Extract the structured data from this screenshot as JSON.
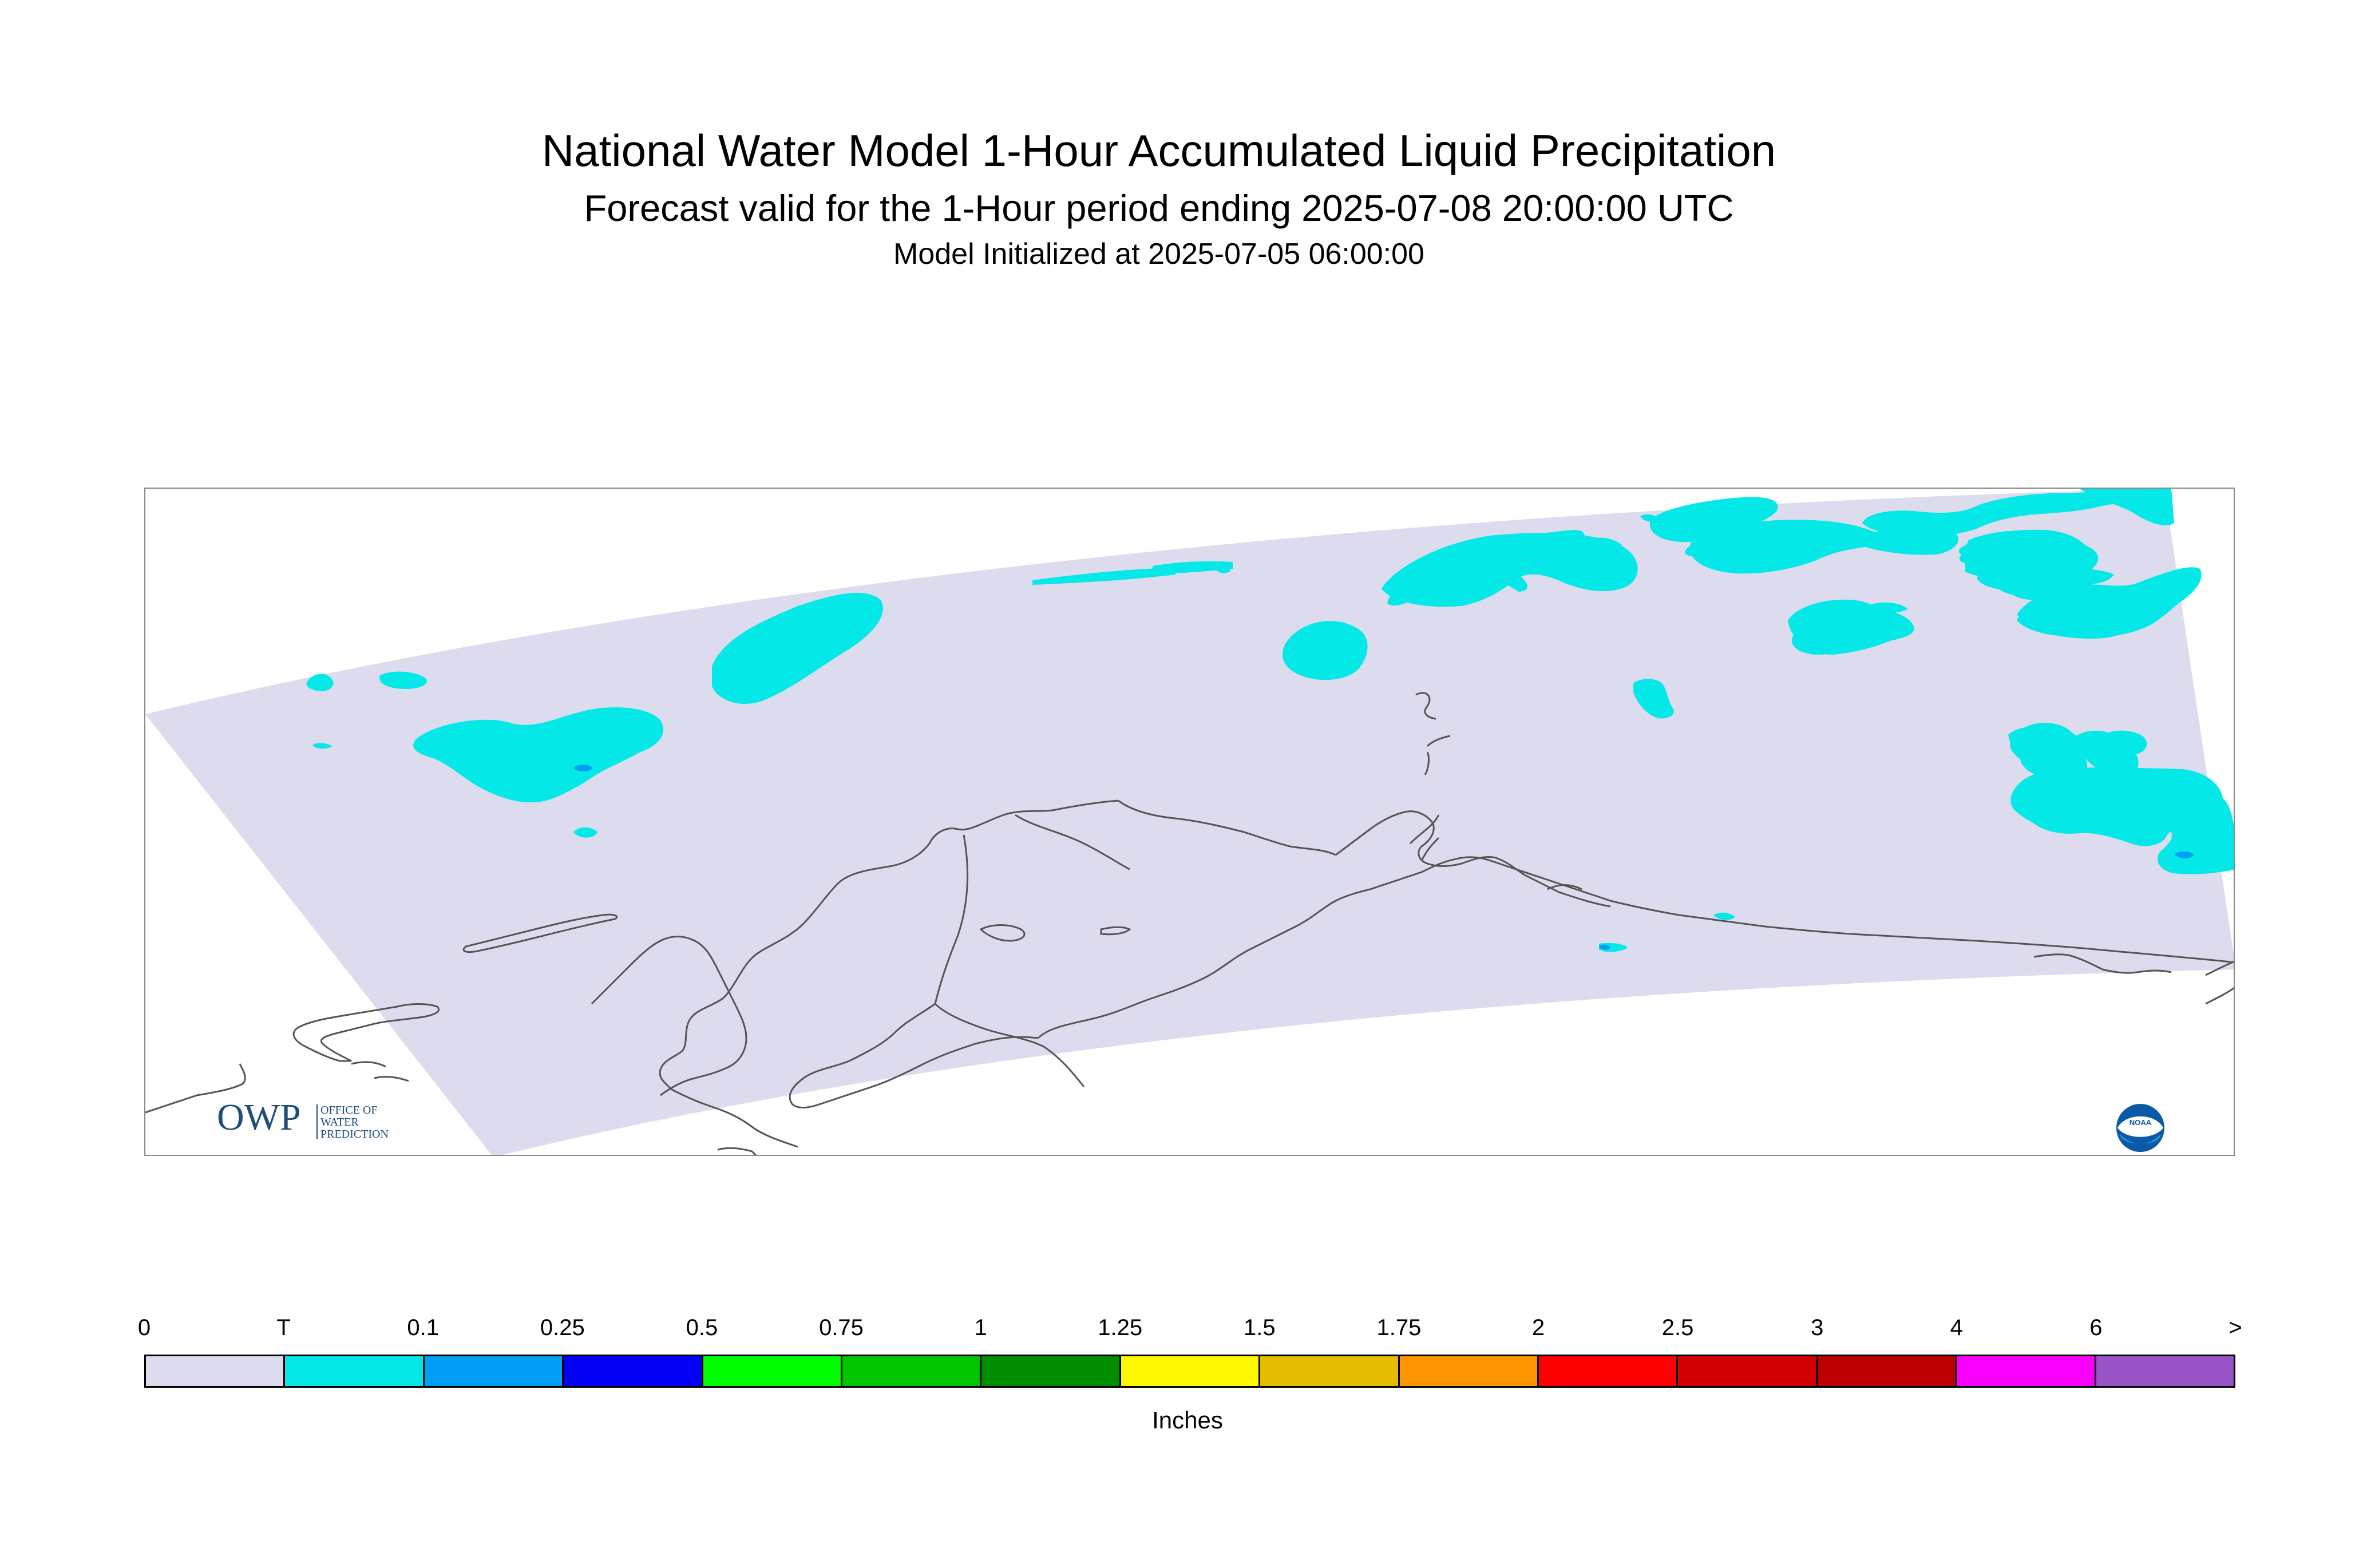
{
  "header": {
    "title": "National Water Model 1-Hour Accumulated Liquid Precipitation",
    "subtitle": "Forecast valid for the 1-Hour period ending 2025-07-08 20:00:00 UTC",
    "init": "Model Initialized at 2025-07-05 06:00:00"
  },
  "map": {
    "domain_fill": "#dcdcee",
    "trace_fill": "#04e9e7",
    "light_precip_fill": "#019ff4",
    "coast_color": "#555555"
  },
  "logos": {
    "owp_text": "OWP",
    "owp_sub": [
      "OFFICE OF",
      "WATER",
      "PREDICTION"
    ],
    "noaa_text": "NOAA"
  },
  "legend": {
    "labels": [
      "0",
      "T",
      "0.1",
      "0.25",
      "0.5",
      "0.75",
      "1",
      "1.25",
      "1.5",
      "1.75",
      "2",
      "2.5",
      "3",
      "4",
      "6",
      ">"
    ],
    "colors": [
      "#dcdcee",
      "#04e9e7",
      "#019ff4",
      "#0300f4",
      "#02fd02",
      "#01c501",
      "#008e00",
      "#fdf802",
      "#e5bc00",
      "#fd9500",
      "#fd0000",
      "#d40000",
      "#bc0000",
      "#f800fd",
      "#9854c6"
    ],
    "units": "Inches"
  }
}
